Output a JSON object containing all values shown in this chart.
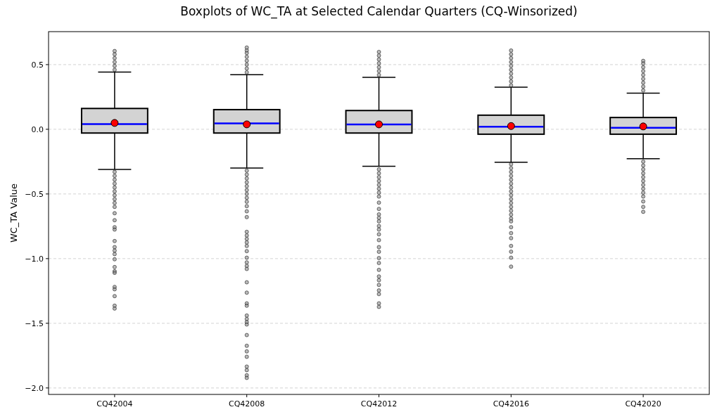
{
  "chart_data": {
    "type": "box",
    "title": "Boxplots of WC_TA at Selected Calendar Quarters (CQ-Winsorized)",
    "ylabel": "WC_TA Value",
    "categories": [
      "CQ42004",
      "CQ42008",
      "CQ42012",
      "CQ42016",
      "CQ42020"
    ],
    "boxes": [
      {
        "low": -0.311,
        "q1": -0.029,
        "median": 0.04,
        "q3": 0.161,
        "high": 0.442,
        "mean": 0.049,
        "outliers": [
          0.46,
          0.49,
          0.52,
          0.55,
          0.58,
          0.605,
          -0.33,
          -0.36,
          -0.39,
          -0.42,
          -0.45,
          -0.48,
          -0.51,
          -0.54,
          -0.57,
          -0.6,
          -0.649,
          -0.703,
          -0.757,
          -0.775,
          -0.864,
          -0.911,
          -0.938,
          -0.965,
          -1.005,
          -1.065,
          -1.098,
          -1.11,
          -1.219,
          -1.237,
          -1.29,
          -1.364,
          -1.386
        ]
      },
      {
        "low": -0.299,
        "q1": -0.029,
        "median": 0.045,
        "q3": 0.152,
        "high": 0.422,
        "mean": 0.038,
        "outliers": [
          0.44,
          0.47,
          0.5,
          0.53,
          0.56,
          0.59,
          0.61,
          0.632,
          -0.32,
          -0.35,
          -0.38,
          -0.41,
          -0.44,
          -0.47,
          -0.5,
          -0.53,
          -0.56,
          -0.594,
          -0.634,
          -0.679,
          -0.793,
          -0.821,
          -0.848,
          -0.875,
          -0.902,
          -0.942,
          -0.993,
          -1.029,
          -1.056,
          -1.08,
          -1.183,
          -1.263,
          -1.346,
          -1.364,
          -1.44,
          -1.467,
          -1.491,
          -1.509,
          -1.591,
          -1.674,
          -1.717,
          -1.759,
          -1.835,
          -1.862,
          -1.902,
          -1.922
        ]
      },
      {
        "low": -0.286,
        "q1": -0.029,
        "median": 0.038,
        "q3": 0.145,
        "high": 0.402,
        "mean": 0.038,
        "outliers": [
          0.42,
          0.45,
          0.48,
          0.51,
          0.54,
          0.57,
          0.598,
          -0.31,
          -0.34,
          -0.37,
          -0.4,
          -0.43,
          -0.46,
          -0.49,
          -0.52,
          -0.567,
          -0.616,
          -0.658,
          -0.685,
          -0.712,
          -0.748,
          -0.775,
          -0.812,
          -0.857,
          -0.911,
          -0.947,
          -0.996,
          -1.034,
          -1.087,
          -1.138,
          -1.167,
          -1.203,
          -1.246,
          -1.274,
          -1.346,
          -1.373
        ]
      },
      {
        "low": -0.255,
        "q1": -0.038,
        "median": 0.02,
        "q3": 0.109,
        "high": 0.326,
        "mean": 0.025,
        "outliers": [
          0.34,
          0.37,
          0.4,
          0.43,
          0.46,
          0.49,
          0.52,
          0.55,
          0.58,
          0.609,
          -0.27,
          -0.3,
          -0.33,
          -0.36,
          -0.39,
          -0.42,
          -0.45,
          -0.48,
          -0.51,
          -0.54,
          -0.57,
          -0.6,
          -0.63,
          -0.66,
          -0.69,
          -0.712,
          -0.757,
          -0.803,
          -0.842,
          -0.902,
          -0.946,
          -0.993,
          -1.062
        ]
      },
      {
        "low": -0.228,
        "q1": -0.038,
        "median": 0.011,
        "q3": 0.091,
        "high": 0.279,
        "mean": 0.022,
        "outliers": [
          0.3,
          0.33,
          0.36,
          0.39,
          0.42,
          0.45,
          0.48,
          0.51,
          0.529,
          -0.25,
          -0.28,
          -0.31,
          -0.34,
          -0.37,
          -0.4,
          -0.43,
          -0.46,
          -0.49,
          -0.52,
          -0.558,
          -0.6,
          -0.638
        ]
      }
    ],
    "ylim": [
      -2.05,
      0.755
    ],
    "yticks": [
      {
        "value": -2,
        "label": "−2.0"
      },
      {
        "value": -1.5,
        "label": "−1.5"
      },
      {
        "value": -1,
        "label": "−1.0"
      },
      {
        "value": -0.5,
        "label": "−0.5"
      },
      {
        "value": 0,
        "label": "0.0"
      },
      {
        "value": 0.5,
        "label": "0.5"
      }
    ],
    "grid": "y"
  }
}
